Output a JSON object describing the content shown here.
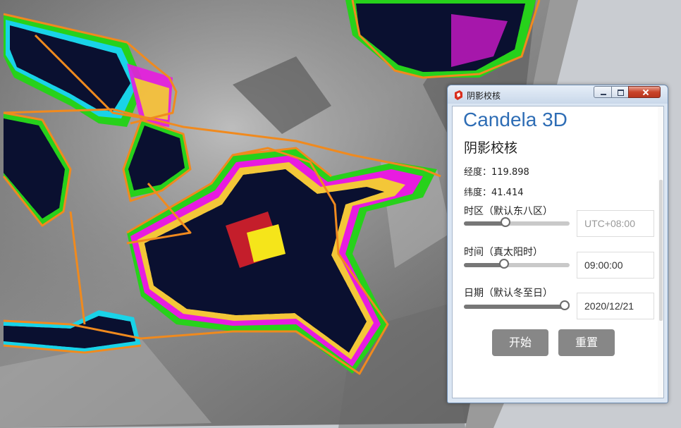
{
  "window": {
    "title": "阴影校核",
    "brand": "Candela 3D",
    "subtitle": "阴影校核"
  },
  "location": {
    "longitude_label": "经度：119.898",
    "latitude_label": "纬度：41.414"
  },
  "timezone": {
    "label": "时区（默认东八区）",
    "placeholder": "UTC+08:00",
    "slider_value": 0.38
  },
  "time": {
    "label": "时间（真太阳时）",
    "value": "09:00:00",
    "slider_value": 0.37
  },
  "date": {
    "label": "日期（默认冬至日）",
    "value": "2020/12/21",
    "slider_value": 1.0
  },
  "actions": {
    "start_label": "开始",
    "reset_label": "重置"
  },
  "colors": {
    "brand": "#2e6db5",
    "button_bg": "#878787",
    "shadow_dark": "#0a1030",
    "boundary_line": "#f08a1e",
    "heat_green": "#27d11b",
    "heat_magenta": "#e81be0",
    "heat_yellow": "#f5e51a",
    "heat_cyan": "#19d3e8",
    "heat_red": "#e5212a"
  },
  "icons": {
    "app": "sketchup-icon",
    "minimize": "minimize-icon",
    "maximize": "maximize-icon",
    "close": "close-icon"
  }
}
